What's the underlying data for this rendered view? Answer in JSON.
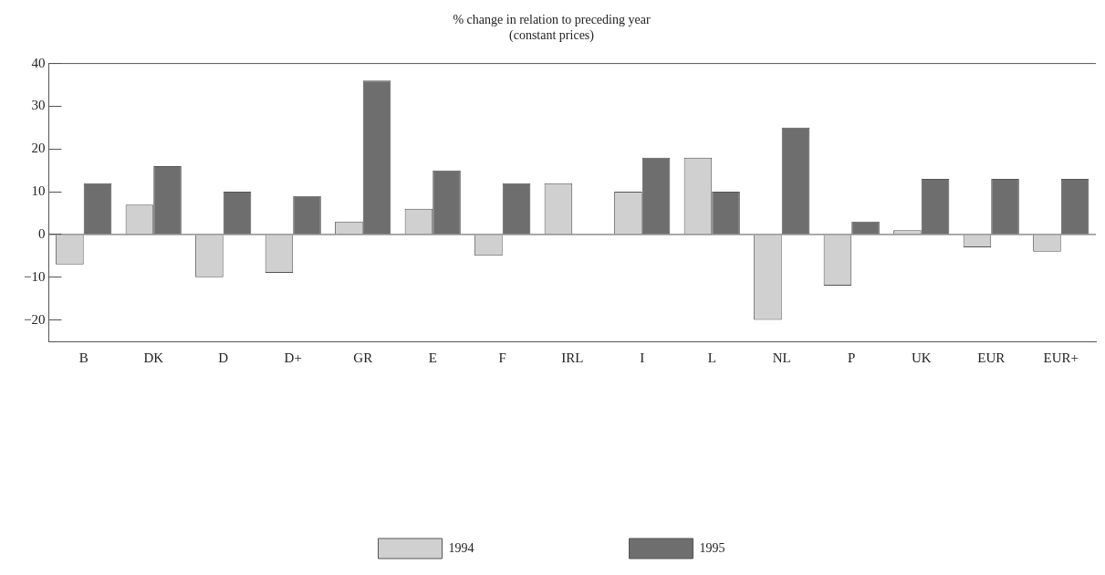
{
  "chart_data": {
    "type": "bar",
    "title": "% change in relation to preceding year",
    "subtitle": "(constant prices)",
    "categories": [
      "B",
      "DK",
      "D",
      "D+",
      "GR",
      "E",
      "F",
      "IRL",
      "I",
      "L",
      "NL",
      "P",
      "UK",
      "EUR",
      "EUR+"
    ],
    "series": [
      {
        "name": "1994",
        "color": "#d0d0d0",
        "values": [
          -7,
          7,
          -10,
          -9,
          3,
          6,
          -5,
          12,
          10,
          18,
          -20,
          -12,
          1,
          -3,
          -4
        ]
      },
      {
        "name": "1995",
        "color": "#6e6e6e",
        "values": [
          12,
          16,
          10,
          9,
          36,
          15,
          12,
          0,
          18,
          10,
          25,
          3,
          13,
          13,
          13
        ]
      }
    ],
    "ylim": [
      -25,
      40
    ],
    "yticks": [
      -20,
      -10,
      0,
      10,
      20,
      30,
      40
    ],
    "ref_lines": [
      {
        "axis": "y",
        "value": 0
      }
    ],
    "grid": false,
    "legend": "bottom"
  }
}
